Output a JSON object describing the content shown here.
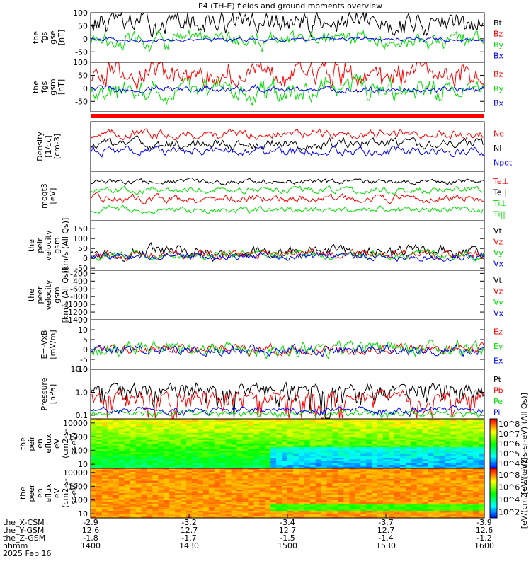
{
  "title": "P4 (TH-E) fields and ground moments overview",
  "colors": {
    "black": "#000000",
    "red": "#ff0000",
    "green": "#00e000",
    "blue": "#0000ff",
    "frame": "#000000"
  },
  "chart_data": [
    {
      "id": "p1",
      "type": "line",
      "ylabel": [
        "the",
        "fgs",
        "gse",
        "[nT]"
      ],
      "yticks": [
        -50,
        0,
        50,
        100
      ],
      "ylim": [
        -90,
        100
      ],
      "series": [
        {
          "name": "Bt",
          "color": "#000000",
          "base": 60,
          "amp": 32,
          "spike": 0
        },
        {
          "name": "Bz",
          "color": "#ff0000",
          "base": 0,
          "amp": 0,
          "spike": 0
        },
        {
          "name": "By",
          "color": "#00e000",
          "base": -5,
          "amp": 25,
          "spike": 0
        },
        {
          "name": "Bx",
          "color": "#0000ff",
          "base": -3,
          "amp": 6,
          "spike": 0
        }
      ]
    },
    {
      "id": "p2",
      "type": "line",
      "ylabel": [
        "the",
        "fgs",
        "gsm",
        "[nT]"
      ],
      "yticks": [
        -50,
        0,
        50,
        100
      ],
      "ylim": [
        -90,
        100
      ],
      "series": [
        {
          "name": "Bz",
          "color": "#ff0000",
          "base": 55,
          "amp": 35,
          "spike": 0
        },
        {
          "name": "By",
          "color": "#00e000",
          "base": -10,
          "amp": 30,
          "spike": 0
        },
        {
          "name": "Bx",
          "color": "#0000ff",
          "base": -5,
          "amp": 8,
          "spike": 0
        }
      ]
    },
    {
      "id": "p3",
      "type": "line",
      "ylabel": [
        "Density",
        "[1/cc]",
        "[cm-3]"
      ],
      "yticks": [],
      "ylim": [
        0,
        1
      ],
      "series": [
        {
          "name": "Ne",
          "color": "#ff0000"
        },
        {
          "name": "Ni",
          "color": "#000000"
        },
        {
          "name": "Npot",
          "color": "#0000ff"
        }
      ]
    },
    {
      "id": "p4",
      "type": "line",
      "ylabel": [
        "moqt3",
        "[eV]"
      ],
      "yticks": [],
      "ylim": [
        0,
        1
      ],
      "series": [
        {
          "name": "Te⊥",
          "color": "#ff0000"
        },
        {
          "name": "Te||",
          "color": "#000000"
        },
        {
          "name": "Ti⊥",
          "color": "#00e000"
        },
        {
          "name": "Ti||",
          "color": "#00e000"
        }
      ]
    },
    {
      "id": "p5",
      "type": "line",
      "ylabel": [
        "the",
        "peir",
        "velocity",
        "gsm",
        "[km/s (All Qs)]"
      ],
      "yticks": [
        -50,
        0,
        50,
        100,
        150
      ],
      "ylim": [
        -60,
        190
      ],
      "series": [
        {
          "name": "Vt",
          "color": "#000000"
        },
        {
          "name": "Vz",
          "color": "#ff0000"
        },
        {
          "name": "Vy",
          "color": "#00e000"
        },
        {
          "name": "Vx",
          "color": "#0000ff"
        }
      ]
    },
    {
      "id": "p6",
      "type": "line",
      "ylabel": [
        "the",
        "peer",
        "velocity",
        "gsm",
        "[km/s (All Qs)]"
      ],
      "yticks": [
        -1400,
        -1200,
        -1000,
        -800,
        -600,
        -400,
        -200
      ],
      "ylim": [
        -1400,
        -120
      ],
      "series": [
        {
          "name": "Vt",
          "color": "#000000"
        },
        {
          "name": "Vz",
          "color": "#ff0000"
        },
        {
          "name": "Vy",
          "color": "#00e000"
        },
        {
          "name": "Vx",
          "color": "#0000ff"
        }
      ]
    },
    {
      "id": "p7",
      "type": "line",
      "ylabel": [
        "E=-VxB",
        "[mV/m]"
      ],
      "yticks": [
        -10,
        -5,
        0,
        5,
        10
      ],
      "ylim": [
        -10,
        15
      ],
      "series": [
        {
          "name": "Ez",
          "color": "#ff0000"
        },
        {
          "name": "Ey",
          "color": "#00e000"
        },
        {
          "name": "Ex",
          "color": "#0000ff"
        }
      ]
    },
    {
      "id": "p8",
      "type": "line",
      "ylabel": [
        "Pressure",
        "[nPa]"
      ],
      "yticks_log": [
        0.1,
        1.0,
        10.0
      ],
      "ytick_labels": [
        "0.1",
        "1.0",
        "10.0"
      ],
      "ylim": [
        0.07,
        10
      ],
      "series": [
        {
          "name": "Pt",
          "color": "#000000"
        },
        {
          "name": "Pb",
          "color": "#ff0000"
        },
        {
          "name": "Pe",
          "color": "#00e000"
        },
        {
          "name": "Pi",
          "color": "#0000ff"
        }
      ]
    },
    {
      "id": "p9",
      "type": "heatmap",
      "ylabel": [
        "the",
        "peir",
        "en",
        "eflux",
        "eV",
        "(cm2-s-",
        "sr-eV)"
      ],
      "yticks": [
        10,
        100,
        1000,
        10000
      ],
      "ytick_labels": [
        "10",
        "100",
        "1000",
        "10000"
      ],
      "colorbar": {
        "label": "[eV/(cm2-s-sr-eV) (All Qs)]",
        "ticks": [
          "10^4",
          "10^5",
          "10^6",
          "10^7",
          "10^8"
        ]
      }
    },
    {
      "id": "p10",
      "type": "heatmap",
      "ylabel": [
        "the",
        "peer",
        "en",
        "eflux",
        "eV",
        "(cm2-s-",
        "sr-eV)"
      ],
      "yticks": [
        10,
        100,
        1000,
        10000
      ],
      "ytick_labels": [
        "10",
        "100",
        "1000",
        "10000"
      ],
      "colorbar": {
        "label": "[eV/(cm2-s-sr-eV)]",
        "ticks": [
          "10^2",
          "10^4",
          "10^6",
          "10^8"
        ]
      }
    }
  ],
  "xaxis": {
    "rows": [
      {
        "label": "the_X-CSM",
        "values": [
          "-2.9",
          "-3.2",
          "-3.4",
          "-3.7",
          "-3.9"
        ]
      },
      {
        "label": "the_Y-GSM",
        "values": [
          "12.6",
          "12.7",
          "12.7",
          "12.7",
          "12.6"
        ]
      },
      {
        "label": "the_Z-GSM",
        "values": [
          "-1.8",
          "-1.7",
          "-1.5",
          "-1.4",
          "-1.2"
        ]
      },
      {
        "label": "hhmm",
        "values": [
          "1400",
          "1430",
          "1500",
          "1530",
          "1600"
        ]
      }
    ],
    "date": "2025 Feb 16"
  }
}
